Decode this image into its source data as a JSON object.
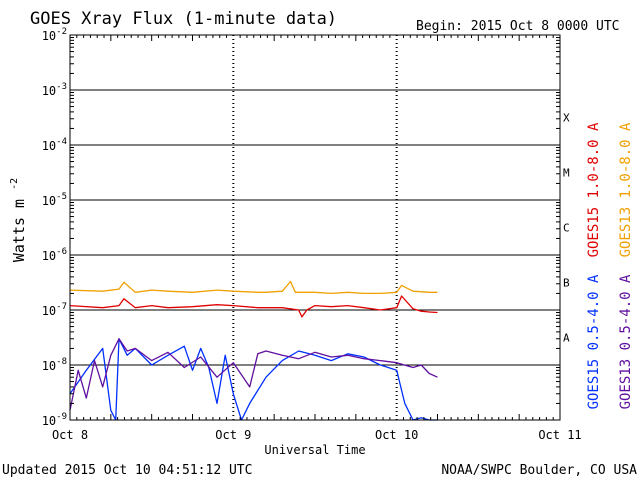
{
  "chart_data": {
    "type": "line",
    "title": "GOES Xray Flux (1-minute data)",
    "begin_label": "Begin:  2015 Oct 8 0000 UTC",
    "xlabel": "Universal Time",
    "ylabel": "Watts m",
    "ylabel_exponent": "-2",
    "x_ticks": [
      "Oct 8",
      "Oct 9",
      "Oct 10",
      "Oct 11"
    ],
    "x_range_days": [
      0,
      3
    ],
    "y_scale": "log",
    "ylim": [
      1e-09,
      0.01
    ],
    "y_ticks": [
      {
        "base": "10",
        "exp": "-9"
      },
      {
        "base": "10",
        "exp": "-8"
      },
      {
        "base": "10",
        "exp": "-7"
      },
      {
        "base": "10",
        "exp": "-6"
      },
      {
        "base": "10",
        "exp": "-5"
      },
      {
        "base": "10",
        "exp": "-4"
      },
      {
        "base": "10",
        "exp": "-3"
      },
      {
        "base": "10",
        "exp": "-2"
      }
    ],
    "flare_classes": [
      {
        "label": "A",
        "flux": 1e-08
      },
      {
        "label": "B",
        "flux": 1e-07
      },
      {
        "label": "C",
        "flux": 1e-06
      },
      {
        "label": "M",
        "flux": 1e-05
      },
      {
        "label": "X",
        "flux": 0.0001
      }
    ],
    "series": [
      {
        "name": "GOES15 1.0-8.0 A",
        "color": "#e00000",
        "x": [
          0.0,
          0.2,
          0.3,
          0.33,
          0.4,
          0.5,
          0.6,
          0.75,
          0.9,
          1.0,
          1.15,
          1.3,
          1.4,
          1.42,
          1.45,
          1.5,
          1.6,
          1.7,
          1.8,
          1.9,
          2.0,
          2.03,
          2.1,
          2.15,
          2.2,
          2.25
        ],
        "y": [
          1.2e-07,
          1.1e-07,
          1.2e-07,
          1.6e-07,
          1.1e-07,
          1.2e-07,
          1.1e-07,
          1.15e-07,
          1.25e-07,
          1.2e-07,
          1.1e-07,
          1.1e-07,
          1e-07,
          7.5e-08,
          1e-07,
          1.2e-07,
          1.15e-07,
          1.2e-07,
          1.1e-07,
          1e-07,
          1.1e-07,
          1.8e-07,
          1.05e-07,
          9.5e-08,
          9.2e-08,
          9e-08
        ]
      },
      {
        "name": "GOES13 1.0-8.0 A",
        "color": "#f0a000",
        "x": [
          0.0,
          0.2,
          0.3,
          0.33,
          0.4,
          0.5,
          0.6,
          0.75,
          0.9,
          1.0,
          1.15,
          1.2,
          1.3,
          1.35,
          1.38,
          1.5,
          1.6,
          1.7,
          1.8,
          1.9,
          2.0,
          2.03,
          2.1,
          2.2,
          2.25
        ],
        "y": [
          2.3e-07,
          2.2e-07,
          2.4e-07,
          3.2e-07,
          2.1e-07,
          2.3e-07,
          2.2e-07,
          2.1e-07,
          2.3e-07,
          2.2e-07,
          2.1e-07,
          2.1e-07,
          2.2e-07,
          3.3e-07,
          2.1e-07,
          2.1e-07,
          2e-07,
          2.1e-07,
          2e-07,
          2e-07,
          2.1e-07,
          2.8e-07,
          2.2e-07,
          2.1e-07,
          2.1e-07
        ]
      },
      {
        "name": "GOES15 0.5-4.0 A",
        "color": "#0030ff",
        "x": [
          0.0,
          0.1,
          0.2,
          0.25,
          0.28,
          0.3,
          0.35,
          0.4,
          0.5,
          0.6,
          0.7,
          0.75,
          0.8,
          0.85,
          0.9,
          0.95,
          1.0,
          1.05,
          1.1,
          1.2,
          1.3,
          1.4,
          1.5,
          1.6,
          1.7,
          1.8,
          1.9,
          2.0,
          2.05,
          2.1,
          2.15,
          2.2,
          2.25
        ],
        "y": [
          3e-09,
          8e-09,
          2e-08,
          1.5e-09,
          1e-09,
          3e-08,
          1.5e-08,
          2e-08,
          1e-08,
          1.5e-08,
          2.2e-08,
          8e-09,
          2e-08,
          9e-09,
          2e-09,
          1.5e-08,
          3e-09,
          1e-09,
          2e-09,
          6e-09,
          1.2e-08,
          1.8e-08,
          1.5e-08,
          1.2e-08,
          1.6e-08,
          1.4e-08,
          1e-08,
          8e-09,
          2e-09,
          1e-09,
          1.1e-09,
          1e-09,
          1e-09
        ]
      },
      {
        "name": "GOES13 0.5-4.0 A",
        "color": "#6010a0",
        "x": [
          0.0,
          0.05,
          0.1,
          0.15,
          0.2,
          0.25,
          0.3,
          0.35,
          0.4,
          0.5,
          0.6,
          0.7,
          0.8,
          0.9,
          1.0,
          1.1,
          1.15,
          1.2,
          1.3,
          1.4,
          1.5,
          1.6,
          1.7,
          1.8,
          1.9,
          2.0,
          2.1,
          2.15,
          2.2,
          2.25
        ],
        "y": [
          1.5e-09,
          8e-09,
          2.5e-09,
          1.2e-08,
          4e-09,
          1.5e-08,
          3e-08,
          1.8e-08,
          2e-08,
          1.2e-08,
          1.7e-08,
          9e-09,
          1.4e-08,
          6e-09,
          1.1e-08,
          4e-09,
          1.6e-08,
          1.8e-08,
          1.5e-08,
          1.3e-08,
          1.7e-08,
          1.4e-08,
          1.5e-08,
          1.3e-08,
          1.2e-08,
          1.1e-08,
          9e-09,
          1e-08,
          7e-09,
          6e-09
        ]
      }
    ],
    "legend_placement": "right, vertical",
    "grid": "horizontal lines at each decade; dotted vertical lines at day boundaries"
  },
  "footer": {
    "updated": "Updated 2015 Oct 10 04:51:12 UTC",
    "credit": "NOAA/SWPC Boulder, CO USA"
  }
}
